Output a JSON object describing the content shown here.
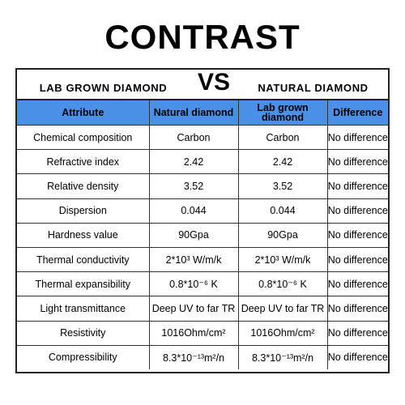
{
  "title": "CONTRAST",
  "banner": {
    "left": "LAB GROWN DIAMOND",
    "vs": "VS",
    "right": "NATURAL DIAMOND"
  },
  "headers": {
    "attribute": "Attribute",
    "natural": "Natural diamond",
    "lab": "Lab grown diamond",
    "difference": "Difference"
  },
  "rows": [
    {
      "attribute": "Chemical composition",
      "natural": "Carbon",
      "lab": "Carbon",
      "difference": "No difference"
    },
    {
      "attribute": "Refractive index",
      "natural": "2.42",
      "lab": "2.42",
      "difference": "No difference"
    },
    {
      "attribute": "Relative density",
      "natural": "3.52",
      "lab": "3.52",
      "difference": "No difference"
    },
    {
      "attribute": "Dispersion",
      "natural": "0.044",
      "lab": "0.044",
      "difference": "No difference"
    },
    {
      "attribute": "Hardness value",
      "natural": "90Gpa",
      "lab": "90Gpa",
      "difference": "No difference"
    },
    {
      "attribute": "Thermal conductivity",
      "natural": "2*10³ W/m/k",
      "lab": "2*10³ W/m/k",
      "difference": "No difference"
    },
    {
      "attribute": "Thermal expansibility",
      "natural": "0.8*10⁻⁶ K",
      "lab": "0.8*10⁻⁶ K",
      "difference": "No difference"
    },
    {
      "attribute": "Light transmittance",
      "natural": "Deep UV to far TR",
      "lab": "Deep UV to far TR",
      "difference": "No difference"
    },
    {
      "attribute": "Resistivity",
      "natural": "1016Ohm/cm²",
      "lab": "1016Ohm/cm²",
      "difference": "No difference"
    },
    {
      "attribute": "Compressibility",
      "natural": "8.3*10⁻¹³m²/n",
      "lab": "8.3*10⁻¹³m²/n",
      "difference": "No difference"
    }
  ],
  "colors": {
    "header_bg": "#4a90e8",
    "border": "#222222"
  }
}
